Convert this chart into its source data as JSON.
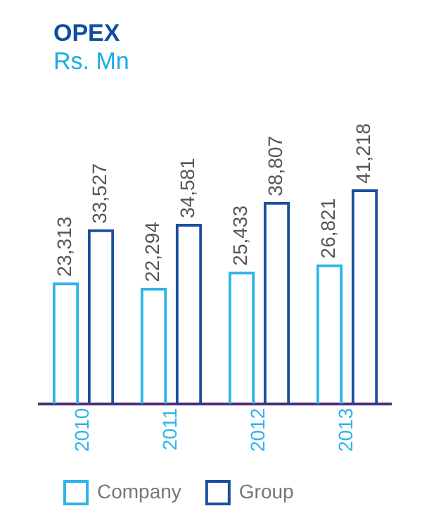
{
  "chart_data": {
    "type": "bar",
    "title": "OPEX",
    "subtitle": "Rs. Mn",
    "categories": [
      "2010",
      "2011",
      "2012",
      "2013"
    ],
    "series": [
      {
        "name": "Company",
        "color": "#2eb4ea",
        "values": [
          23313,
          22294,
          25433,
          26821
        ],
        "value_labels": [
          "23,313",
          "22,294",
          "25,433",
          "26,821"
        ]
      },
      {
        "name": "Group",
        "color": "#1b4f9e",
        "values": [
          33527,
          34581,
          38807,
          41218
        ],
        "value_labels": [
          "33,527",
          "34,581",
          "38,807",
          "41,218"
        ]
      }
    ],
    "legend": "bottom",
    "grid": false
  }
}
